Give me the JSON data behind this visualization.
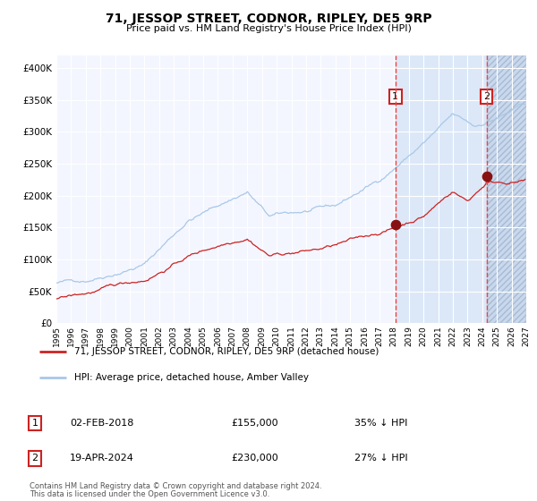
{
  "title": "71, JESSOP STREET, CODNOR, RIPLEY, DE5 9RP",
  "subtitle": "Price paid vs. HM Land Registry's House Price Index (HPI)",
  "hpi_label": "HPI: Average price, detached house, Amber Valley",
  "property_label": "71, JESSOP STREET, CODNOR, RIPLEY, DE5 9RP (detached house)",
  "sale1_date": "02-FEB-2018",
  "sale1_price": 155000,
  "sale1_pct": "35% ↓ HPI",
  "sale2_date": "19-APR-2024",
  "sale2_price": 230000,
  "sale2_pct": "27% ↓ HPI",
  "footnote1": "Contains HM Land Registry data © Crown copyright and database right 2024.",
  "footnote2": "This data is licensed under the Open Government Licence v3.0.",
  "hpi_color": "#a8c8e8",
  "property_color": "#cc2222",
  "sale_dot_color": "#881111",
  "vline_color": "#ee4444",
  "bg_color": "#ffffff",
  "plot_bg": "#f4f6ff",
  "shade_between": "#dce8f8",
  "hatch_color": "#c8d8ee",
  "ylim": [
    0,
    420000
  ],
  "xlim_start": 1995,
  "xlim_end": 2027,
  "sale1_year": 2018.083,
  "sale2_year": 2024.292
}
